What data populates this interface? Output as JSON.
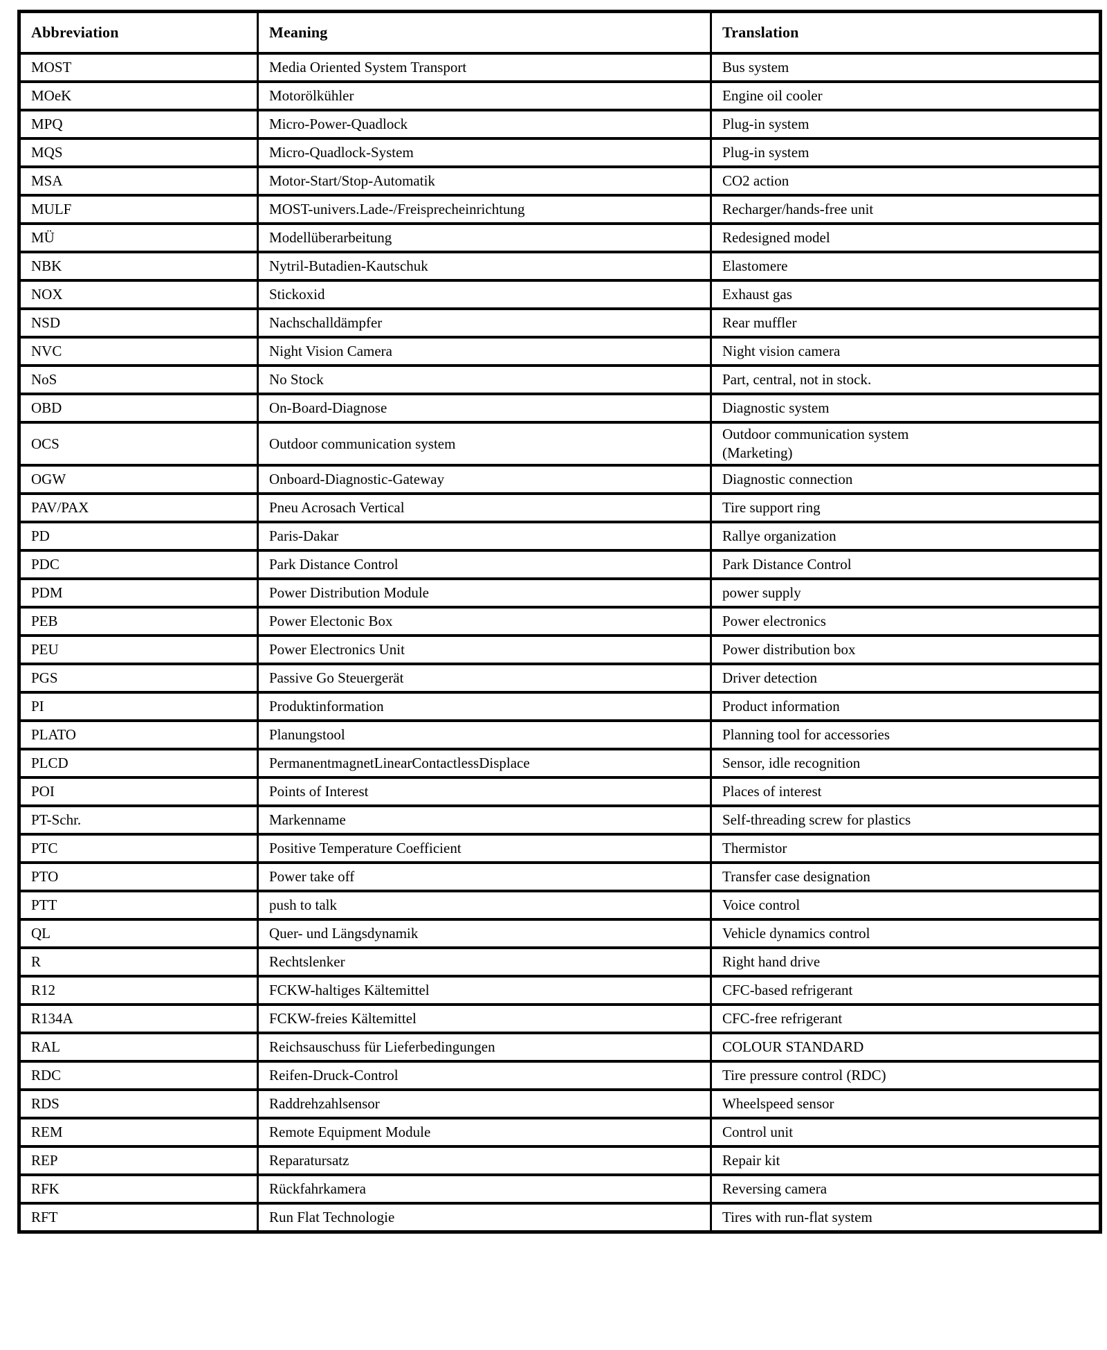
{
  "colors": {
    "background": "#ffffff",
    "border": "#000000",
    "text": "#000000"
  },
  "table": {
    "headers": {
      "abbr": "Abbreviation",
      "meaning": "Meaning",
      "translation": "Translation"
    },
    "rows": [
      {
        "abbr": "MOST",
        "meaning": "Media Oriented System Transport",
        "translation": "Bus system"
      },
      {
        "abbr": "MOeK",
        "meaning": "Motorölkühler",
        "translation": "Engine oil cooler"
      },
      {
        "abbr": "MPQ",
        "meaning": "Micro-Power-Quadlock",
        "translation": "Plug-in system"
      },
      {
        "abbr": "MQS",
        "meaning": "Micro-Quadlock-System",
        "translation": "Plug-in system"
      },
      {
        "abbr": "MSA",
        "meaning": "Motor-Start/Stop-Automatik",
        "translation": "CO2 action"
      },
      {
        "abbr": "MULF",
        "meaning": "MOST-univers.Lade-/Freisprecheinrichtung",
        "translation": "Recharger/hands-free unit"
      },
      {
        "abbr": "MÜ",
        "meaning": "Modellüberarbeitung",
        "translation": "Redesigned model"
      },
      {
        "abbr": "NBK",
        "meaning": "Nytril-Butadien-Kautschuk",
        "translation": "Elastomere"
      },
      {
        "abbr": "NOX",
        "meaning": "Stickoxid",
        "translation": "Exhaust gas"
      },
      {
        "abbr": "NSD",
        "meaning": "Nachschalldämpfer",
        "translation": "Rear muffler"
      },
      {
        "abbr": "NVC",
        "meaning": "Night Vision Camera",
        "translation": "Night vision camera"
      },
      {
        "abbr": "NoS",
        "meaning": "No Stock",
        "translation": "Part, central, not in stock."
      },
      {
        "abbr": "OBD",
        "meaning": "On-Board-Diagnose",
        "translation": "Diagnostic system"
      },
      {
        "abbr": "OCS",
        "meaning": "Outdoor communication system",
        "translation": "Outdoor communication system\n(Marketing)"
      },
      {
        "abbr": "OGW",
        "meaning": "Onboard-Diagnostic-Gateway",
        "translation": "Diagnostic connection"
      },
      {
        "abbr": "PAV/PAX",
        "meaning": "Pneu Acrosach Vertical",
        "translation": "Tire support ring"
      },
      {
        "abbr": "PD",
        "meaning": "Paris-Dakar",
        "translation": "Rallye organization"
      },
      {
        "abbr": "PDC",
        "meaning": "Park Distance Control",
        "translation": "Park Distance Control"
      },
      {
        "abbr": "PDM",
        "meaning": "Power Distribution Module",
        "translation": "power supply"
      },
      {
        "abbr": "PEB",
        "meaning": "Power Electonic Box",
        "translation": "Power electronics"
      },
      {
        "abbr": "PEU",
        "meaning": "Power Electronics Unit",
        "translation": "Power distribution box"
      },
      {
        "abbr": "PGS",
        "meaning": "Passive Go Steuergerät",
        "translation": "Driver detection"
      },
      {
        "abbr": "PI",
        "meaning": "Produktinformation",
        "translation": "Product information"
      },
      {
        "abbr": "PLATO",
        "meaning": "Planungstool",
        "translation": "Planning tool for accessories"
      },
      {
        "abbr": "PLCD",
        "meaning": "PermanentmagnetLinearContactlessDisplace",
        "translation": "Sensor, idle recognition"
      },
      {
        "abbr": "POI",
        "meaning": "Points of Interest",
        "translation": "Places of interest"
      },
      {
        "abbr": "PT-Schr.",
        "meaning": "Markenname",
        "translation": "Self-threading screw for plastics"
      },
      {
        "abbr": "PTC",
        "meaning": "Positive Temperature Coefficient",
        "translation": "Thermistor"
      },
      {
        "abbr": "PTO",
        "meaning": "Power take off",
        "translation": "Transfer case designation"
      },
      {
        "abbr": "PTT",
        "meaning": "push to talk",
        "translation": "Voice control"
      },
      {
        "abbr": "QL",
        "meaning": "Quer- und Längsdynamik",
        "translation": "Vehicle dynamics control"
      },
      {
        "abbr": "R",
        "meaning": "Rechtslenker",
        "translation": "Right hand drive"
      },
      {
        "abbr": "R12",
        "meaning": "FCKW-haltiges Kältemittel",
        "translation": "CFC-based refrigerant"
      },
      {
        "abbr": "R134A",
        "meaning": "FCKW-freies Kältemittel",
        "translation": "CFC-free refrigerant"
      },
      {
        "abbr": "RAL",
        "meaning": "Reichsauschuss für Lieferbedingungen",
        "translation": "COLOUR STANDARD"
      },
      {
        "abbr": "RDC",
        "meaning": "Reifen-Druck-Control",
        "translation": "Tire pressure control (RDC)"
      },
      {
        "abbr": "RDS",
        "meaning": "Raddrehzahlsensor",
        "translation": "Wheelspeed sensor"
      },
      {
        "abbr": "REM",
        "meaning": "Remote Equipment Module",
        "translation": "Control unit"
      },
      {
        "abbr": "REP",
        "meaning": "Reparatursatz",
        "translation": "Repair kit"
      },
      {
        "abbr": "RFK",
        "meaning": "Rückfahrkamera",
        "translation": "Reversing camera"
      },
      {
        "abbr": "RFT",
        "meaning": "Run Flat Technologie",
        "translation": "Tires with run-flat system"
      }
    ]
  }
}
